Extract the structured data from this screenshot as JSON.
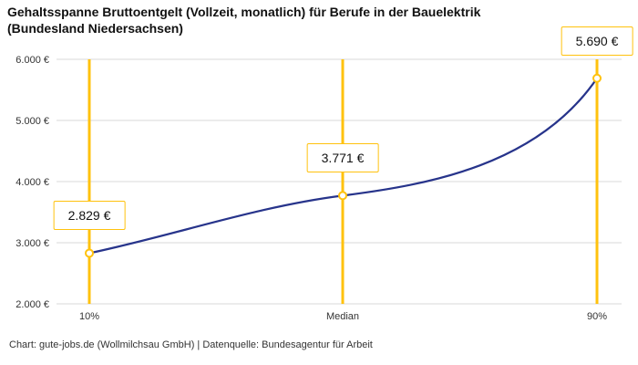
{
  "title": "Gehaltsspanne Bruttoentgelt (Vollzeit, monatlich) für Berufe in der Bauelektrik (Bundesland Niedersachsen)",
  "footer": "Chart: gute-jobs.de (Wollmilchsau GmbH) | Datenquelle: Bundesagentur für Arbeit",
  "colors": {
    "accent_yellow": "#FFC20E",
    "line_blue": "#27348B",
    "grid": "#d9d9d9",
    "tick_text": "#333333",
    "title_text": "#111111"
  },
  "chart_data": {
    "type": "line",
    "title": "Gehaltsspanne Bruttoentgelt (Vollzeit, monatlich) für Berufe in der Bauelektrik (Bundesland Niedersachsen)",
    "categories": [
      "10%",
      "Median",
      "90%"
    ],
    "values": [
      2829,
      3771,
      5690
    ],
    "point_labels": [
      "2.829 €",
      "3.771 €",
      "5.690 €"
    ],
    "ylim": [
      2000,
      6000
    ],
    "yticks": [
      2000,
      3000,
      4000,
      5000,
      6000
    ],
    "ytick_labels": [
      "2.000 €",
      "3.000 €",
      "4.000 €",
      "5.000 €",
      "6.000 €"
    ],
    "xlabel": "",
    "ylabel": "",
    "grid": true,
    "legend": false,
    "annotation": "Chart: gute-jobs.de (Wollmilchsau GmbH) | Datenquelle: Bundesagentur für Arbeit"
  }
}
